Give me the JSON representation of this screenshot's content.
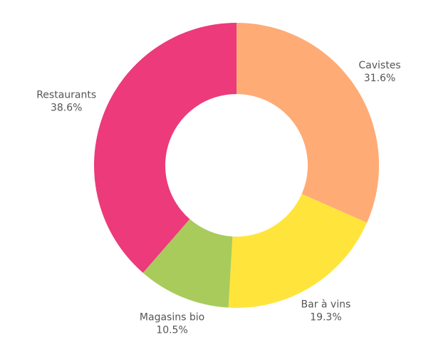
{
  "chart_data": {
    "type": "donut",
    "categories": [
      "Cavistes",
      "Bar à vins",
      "Magasins bio",
      "Restaurants"
    ],
    "values": [
      31.6,
      19.3,
      10.5,
      38.6
    ],
    "value_labels": [
      "31.6%",
      "19.3%",
      "10.5%",
      "38.6%"
    ],
    "colors": [
      "#ffab76",
      "#ffe53b",
      "#a8cb5b",
      "#ec3a7b"
    ]
  }
}
